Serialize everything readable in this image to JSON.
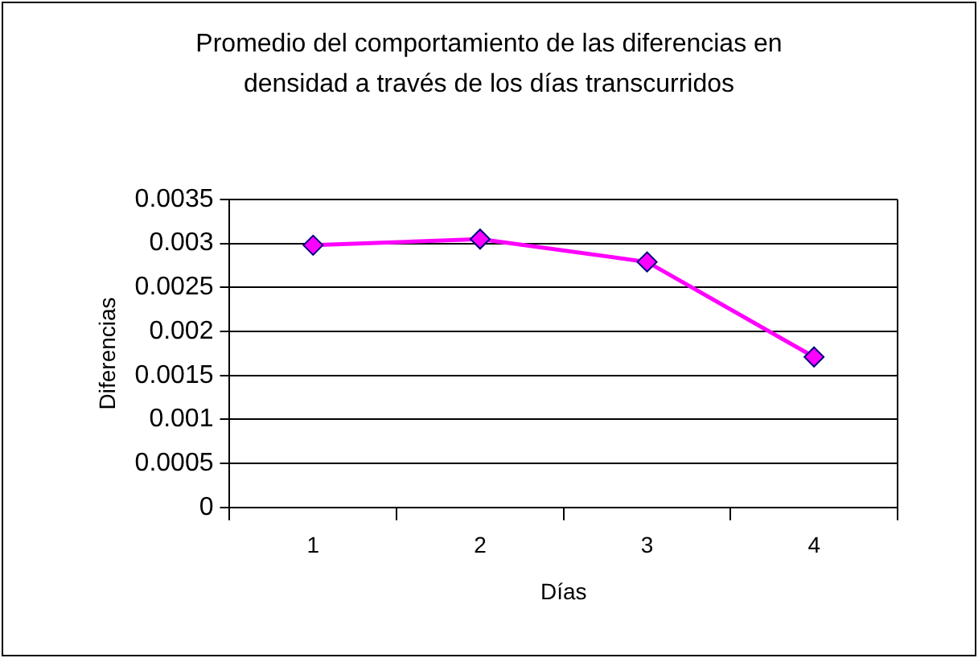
{
  "chart_data": {
    "type": "line",
    "title": "Promedio del comportamiento de las diferencias en densidad a través de los días transcurridos",
    "xlabel": "Días",
    "ylabel": "Diferencias",
    "categories": [
      "1",
      "2",
      "3",
      "4"
    ],
    "series": [
      {
        "color": "#ff00ff",
        "values": [
          0.00298,
          0.00305,
          0.00279,
          0.00171
        ]
      }
    ],
    "ylim": [
      0,
      0.0035
    ],
    "yticks": [
      0,
      0.0005,
      0.001,
      0.0015,
      0.002,
      0.0025,
      0.003,
      0.0035
    ],
    "grid": "y",
    "legend": false,
    "marker": "diamond",
    "line_style": "solid"
  }
}
